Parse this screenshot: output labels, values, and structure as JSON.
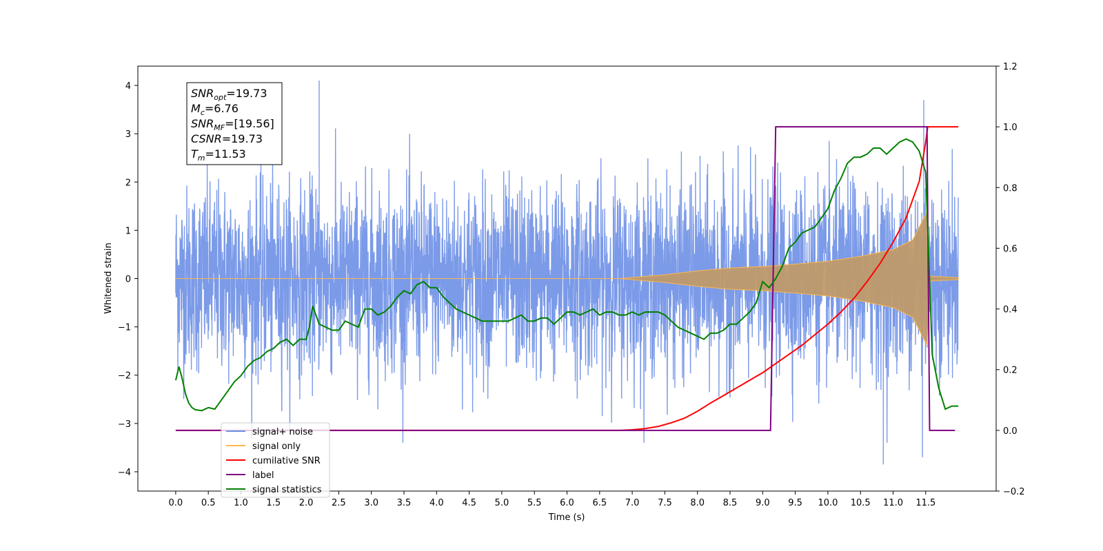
{
  "chart_data": {
    "type": "line",
    "xlabel": "Time (s)",
    "ylabel": "Whitened strain",
    "xlim": [
      -0.58,
      12.58
    ],
    "ylim": [
      -4.4,
      4.4
    ],
    "y2lim": [
      -0.2,
      1.2
    ],
    "x_ticks": [
      "0.0",
      "0.5",
      "1.0",
      "1.5",
      "2.0",
      "2.5",
      "3.0",
      "3.5",
      "4.0",
      "4.5",
      "5.0",
      "5.5",
      "6.0",
      "6.5",
      "7.0",
      "7.5",
      "8.0",
      "8.5",
      "9.0",
      "9.5",
      "10.0",
      "10.5",
      "11.0",
      "11.5"
    ],
    "y_ticks": [
      "−4",
      "−3",
      "−2",
      "−1",
      "0",
      "1",
      "2",
      "3",
      "4"
    ],
    "y2_ticks": [
      "−0.2",
      "0.0",
      "0.2",
      "0.4",
      "0.6",
      "0.8",
      "1.0",
      "1.2"
    ],
    "grid": false,
    "legend_position": "lower-left",
    "annotation": {
      "lines": [
        {
          "name": "SNR",
          "sub": "opt",
          "value": "=19.73"
        },
        {
          "name": "M",
          "sub": "c",
          "value": "=6.76"
        },
        {
          "name": "SNR",
          "sub": "MF",
          "value": "=[19.56]"
        },
        {
          "name": "CSNR",
          "sub": "",
          "value": "=19.73"
        },
        {
          "name": "T",
          "sub": "m",
          "value": "=11.53"
        }
      ]
    },
    "series": [
      {
        "name": "signal+ noise",
        "color": "#7091e6",
        "axis": "left",
        "description_values": {
          "x_range": [
            0.0,
            12.0
          ],
          "noise_std": 1.0,
          "notable_peaks": [
            [
              2.2,
              4.1
            ],
            [
              10.85,
              -3.85
            ],
            [
              11.47,
              3.7
            ],
            [
              11.45,
              -3.7
            ]
          ]
        }
      },
      {
        "name": "signal only",
        "color": "#ffb84d",
        "axis": "left",
        "envelope": {
          "x": [
            0.0,
            6.8,
            7.5,
            8.0,
            8.5,
            9.0,
            9.5,
            10.0,
            10.5,
            11.0,
            11.3,
            11.45,
            11.53,
            11.56,
            12.0
          ],
          "y": [
            0.0,
            0.0,
            0.08,
            0.16,
            0.22,
            0.25,
            0.3,
            0.36,
            0.46,
            0.6,
            0.8,
            1.2,
            1.4,
            0.05,
            0.02
          ]
        }
      },
      {
        "name": "cumilative SNR",
        "color": "#ff0000",
        "axis": "right",
        "x": [
          0.0,
          6.8,
          7.0,
          7.2,
          7.4,
          7.6,
          7.8,
          8.0,
          8.2,
          8.4,
          8.6,
          8.8,
          9.0,
          9.2,
          9.4,
          9.6,
          9.8,
          10.0,
          10.2,
          10.4,
          10.6,
          10.8,
          11.0,
          11.2,
          11.4,
          11.5,
          11.53,
          12.0
        ],
        "y": [
          0.0,
          0.0,
          0.002,
          0.006,
          0.013,
          0.025,
          0.04,
          0.063,
          0.09,
          0.115,
          0.14,
          0.165,
          0.19,
          0.22,
          0.25,
          0.28,
          0.315,
          0.35,
          0.39,
          0.435,
          0.49,
          0.55,
          0.62,
          0.7,
          0.82,
          0.95,
          1.0,
          1.0
        ]
      },
      {
        "name": "label",
        "color": "#800080",
        "axis": "right",
        "x": [
          0.0,
          9.12,
          9.2,
          11.52,
          11.56,
          11.95
        ],
        "y": [
          0.0,
          0.0,
          1.0,
          1.0,
          0.0,
          0.0
        ]
      },
      {
        "name": "signal statistics",
        "color": "#008000",
        "axis": "right",
        "x": [
          0.0,
          0.05,
          0.1,
          0.15,
          0.2,
          0.25,
          0.3,
          0.4,
          0.5,
          0.6,
          0.7,
          0.8,
          0.9,
          1.0,
          1.1,
          1.2,
          1.3,
          1.4,
          1.5,
          1.6,
          1.7,
          1.8,
          1.9,
          2.0,
          2.05,
          2.1,
          2.2,
          2.3,
          2.4,
          2.5,
          2.6,
          2.7,
          2.8,
          2.9,
          3.0,
          3.1,
          3.2,
          3.3,
          3.4,
          3.5,
          3.6,
          3.7,
          3.8,
          3.9,
          4.0,
          4.1,
          4.2,
          4.3,
          4.4,
          4.5,
          4.6,
          4.7,
          4.8,
          4.9,
          5.0,
          5.1,
          5.2,
          5.3,
          5.4,
          5.5,
          5.6,
          5.7,
          5.8,
          5.9,
          6.0,
          6.1,
          6.2,
          6.3,
          6.4,
          6.5,
          6.6,
          6.7,
          6.8,
          6.9,
          7.0,
          7.1,
          7.2,
          7.3,
          7.4,
          7.5,
          7.6,
          7.7,
          7.8,
          7.9,
          8.0,
          8.1,
          8.2,
          8.3,
          8.4,
          8.5,
          8.6,
          8.7,
          8.8,
          8.9,
          9.0,
          9.1,
          9.2,
          9.3,
          9.4,
          9.5,
          9.6,
          9.7,
          9.8,
          9.9,
          10.0,
          10.1,
          10.2,
          10.3,
          10.4,
          10.5,
          10.6,
          10.7,
          10.8,
          10.9,
          11.0,
          11.1,
          11.2,
          11.3,
          11.4,
          11.5,
          11.55,
          11.6,
          11.7,
          11.8,
          11.9,
          12.0
        ],
        "y": [
          0.165,
          0.21,
          0.17,
          0.12,
          0.09,
          0.075,
          0.068,
          0.065,
          0.075,
          0.07,
          0.1,
          0.13,
          0.16,
          0.18,
          0.21,
          0.23,
          0.24,
          0.26,
          0.27,
          0.29,
          0.3,
          0.28,
          0.3,
          0.3,
          0.34,
          0.41,
          0.35,
          0.34,
          0.33,
          0.33,
          0.36,
          0.35,
          0.34,
          0.4,
          0.4,
          0.38,
          0.39,
          0.41,
          0.44,
          0.46,
          0.45,
          0.48,
          0.49,
          0.47,
          0.47,
          0.44,
          0.42,
          0.4,
          0.39,
          0.38,
          0.37,
          0.36,
          0.36,
          0.36,
          0.36,
          0.36,
          0.37,
          0.38,
          0.36,
          0.36,
          0.37,
          0.37,
          0.35,
          0.37,
          0.39,
          0.39,
          0.38,
          0.39,
          0.4,
          0.38,
          0.39,
          0.39,
          0.38,
          0.38,
          0.39,
          0.38,
          0.39,
          0.39,
          0.39,
          0.38,
          0.36,
          0.34,
          0.33,
          0.32,
          0.31,
          0.3,
          0.32,
          0.32,
          0.33,
          0.35,
          0.35,
          0.37,
          0.39,
          0.42,
          0.49,
          0.47,
          0.5,
          0.54,
          0.6,
          0.62,
          0.65,
          0.66,
          0.67,
          0.7,
          0.73,
          0.79,
          0.83,
          0.88,
          0.9,
          0.9,
          0.91,
          0.93,
          0.93,
          0.91,
          0.93,
          0.95,
          0.96,
          0.95,
          0.92,
          0.85,
          0.55,
          0.25,
          0.14,
          0.07,
          0.08,
          0.08
        ]
      }
    ]
  }
}
